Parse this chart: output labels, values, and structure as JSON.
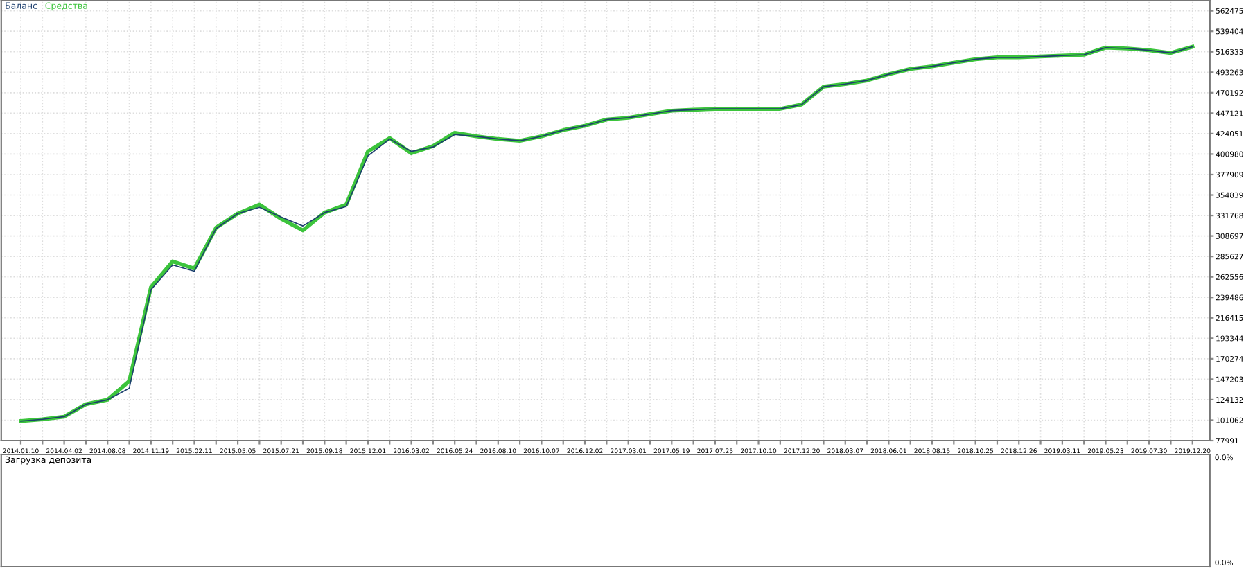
{
  "chart_data": [
    {
      "type": "line",
      "legend": "top left",
      "grid": true,
      "marker": "none",
      "line_style": "solid",
      "categories": [
        "2014.01.10",
        null,
        "2014.04.02",
        null,
        "2014.08.08",
        null,
        "2014.11.19",
        null,
        "2015.02.11",
        null,
        "2015.05.05",
        null,
        "2015.07.21",
        null,
        "2015.09.18",
        null,
        "2015.12.01",
        null,
        "2016.03.02",
        null,
        "2016.05.24",
        null,
        "2016.08.10",
        null,
        "2016.10.07",
        null,
        "2016.12.02",
        null,
        "2017.03.01",
        null,
        "2017.05.19",
        null,
        "2017.07.25",
        null,
        "2017.10.10",
        null,
        "2017.12.20",
        null,
        "2018.03.07",
        null,
        "2018.06.01",
        null,
        "2018.08.15",
        null,
        "2018.10.25",
        null,
        "2018.12.26",
        null,
        "2019.03.11",
        null,
        "2019.05.23",
        null,
        "2019.07.30",
        null,
        "2019.12.20"
      ],
      "ylim": [
        77991,
        574700
      ],
      "yticks": [
        77991,
        101062,
        124132,
        147203,
        170274,
        193344,
        216415,
        239486,
        262556,
        285627,
        308697,
        331768,
        354839,
        377909,
        400980,
        424051,
        447121,
        470192,
        493263,
        516333,
        539404,
        562475
      ],
      "series": [
        {
          "name": "Средства",
          "color": "#3cc43c",
          "values": [
            100000,
            102000,
            105000,
            119000,
            124000,
            145000,
            251000,
            280000,
            272000,
            318000,
            334000,
            344000,
            328000,
            315000,
            335000,
            344000,
            404000,
            419000,
            402000,
            410000,
            425000,
            421000,
            418000,
            416000,
            421000,
            428000,
            433000,
            440000,
            442000,
            446000,
            450000,
            451000,
            452000,
            452000,
            452000,
            452000,
            457000,
            477000,
            480000,
            484000,
            491000,
            497000,
            500000,
            504000,
            508000,
            510000,
            510000,
            511000,
            512000,
            513000,
            521000,
            520000,
            518000,
            515000,
            522000
          ]
        },
        {
          "name": "Баланс",
          "color": "#1d3f6e",
          "values": [
            100000,
            102000,
            105000,
            119000,
            124000,
            137000,
            248000,
            276000,
            269000,
            317000,
            334000,
            341000,
            330000,
            320000,
            335000,
            342000,
            399000,
            418000,
            404000,
            409000,
            423000,
            421000,
            418000,
            416000,
            421000,
            428000,
            433000,
            440000,
            442000,
            446000,
            450000,
            451000,
            452000,
            452000,
            452000,
            452000,
            457000,
            477000,
            480000,
            484000,
            491000,
            497000,
            500000,
            504000,
            508000,
            510000,
            510000,
            511000,
            512000,
            513000,
            521000,
            520000,
            518000,
            515000,
            522000
          ]
        }
      ]
    },
    {
      "type": "other",
      "title": "Загрузка депозита",
      "annotations": [
        "0.0%",
        "0.0%"
      ]
    }
  ]
}
